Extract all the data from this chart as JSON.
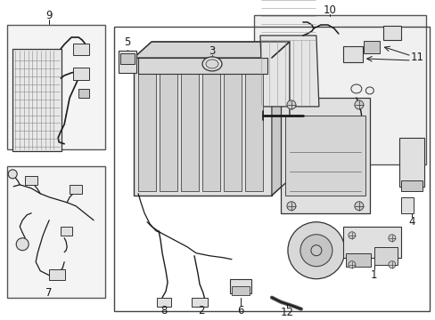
{
  "bg": "#ffffff",
  "lc": "#1a1a1a",
  "fill_light": "#f0f0f0",
  "fill_mid": "#e0e0e0",
  "fill_dark": "#c8c8c8",
  "box_edge": "#404040",
  "fig_w": 4.89,
  "fig_h": 3.6,
  "dpi": 100,
  "label_size": 8.5
}
